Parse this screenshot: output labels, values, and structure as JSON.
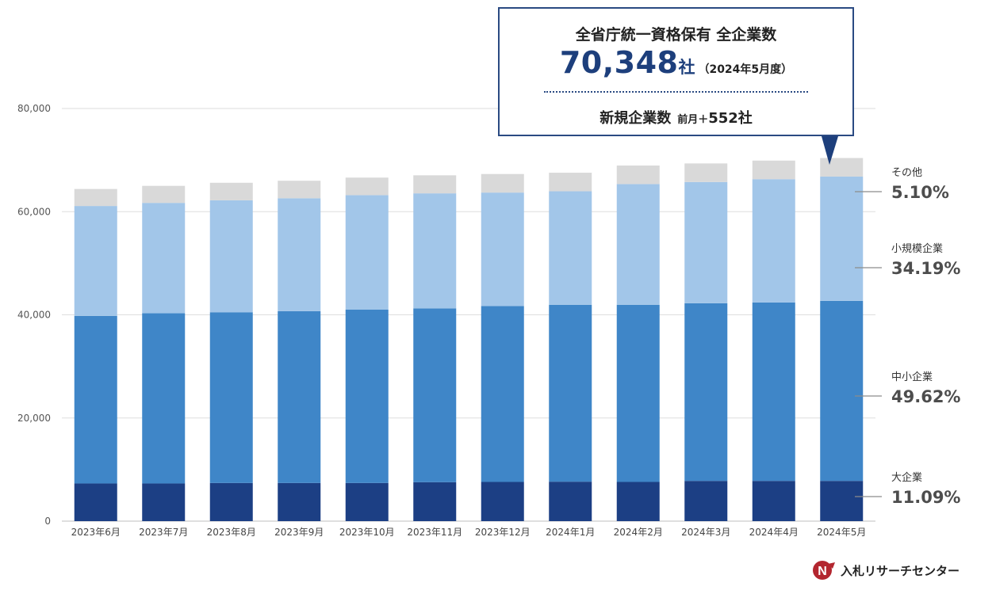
{
  "callout": {
    "title": "全省庁統一資格保有 全企業数",
    "total": "70,348",
    "total_unit": "社",
    "period": "（2024年5月度）",
    "new_label": "新規企業数",
    "delta_label": "前月＋",
    "delta_value": "552社"
  },
  "brand": {
    "name": "入札リサーチセンター",
    "logo_letter": "N"
  },
  "chart_data": {
    "type": "bar",
    "stacked": true,
    "categories": [
      "2023年6月",
      "2023年7月",
      "2023年8月",
      "2023年9月",
      "2023年10月",
      "2023年11月",
      "2023年12月",
      "2024年1月",
      "2024年2月",
      "2024年3月",
      "2024年4月",
      "2024年5月"
    ],
    "series": [
      {
        "name": "大企業",
        "color": "#1c3f84",
        "values": [
          7300,
          7300,
          7400,
          7400,
          7400,
          7550,
          7600,
          7650,
          7600,
          7800,
          7800,
          7800
        ]
      },
      {
        "name": "中小企業",
        "color": "#3f86c8",
        "values": [
          32500,
          33000,
          33100,
          33300,
          33600,
          33700,
          34100,
          34300,
          34350,
          34450,
          34600,
          34900
        ]
      },
      {
        "name": "小規模企業",
        "color": "#a2c6e9",
        "values": [
          21300,
          21400,
          21700,
          21900,
          22200,
          22300,
          22000,
          22000,
          23400,
          23500,
          23900,
          24100
        ]
      },
      {
        "name": "その他",
        "color": "#d9d9d9",
        "values": [
          3300,
          3300,
          3400,
          3400,
          3400,
          3500,
          3600,
          3600,
          3600,
          3600,
          3600,
          3600
        ]
      }
    ],
    "share_labels": [
      {
        "name": "その他",
        "value": "5.10%"
      },
      {
        "name": "小規模企業",
        "value": "34.19%"
      },
      {
        "name": "中小企業",
        "value": "49.62%"
      },
      {
        "name": "大企業",
        "value": "11.09%"
      }
    ],
    "yticks": [
      0,
      20000,
      40000,
      60000,
      80000
    ],
    "ytick_labels": [
      "0",
      "20,000",
      "40,000",
      "60,000",
      "80,000"
    ],
    "ylim": [
      0,
      80000
    ],
    "grid": true
  }
}
